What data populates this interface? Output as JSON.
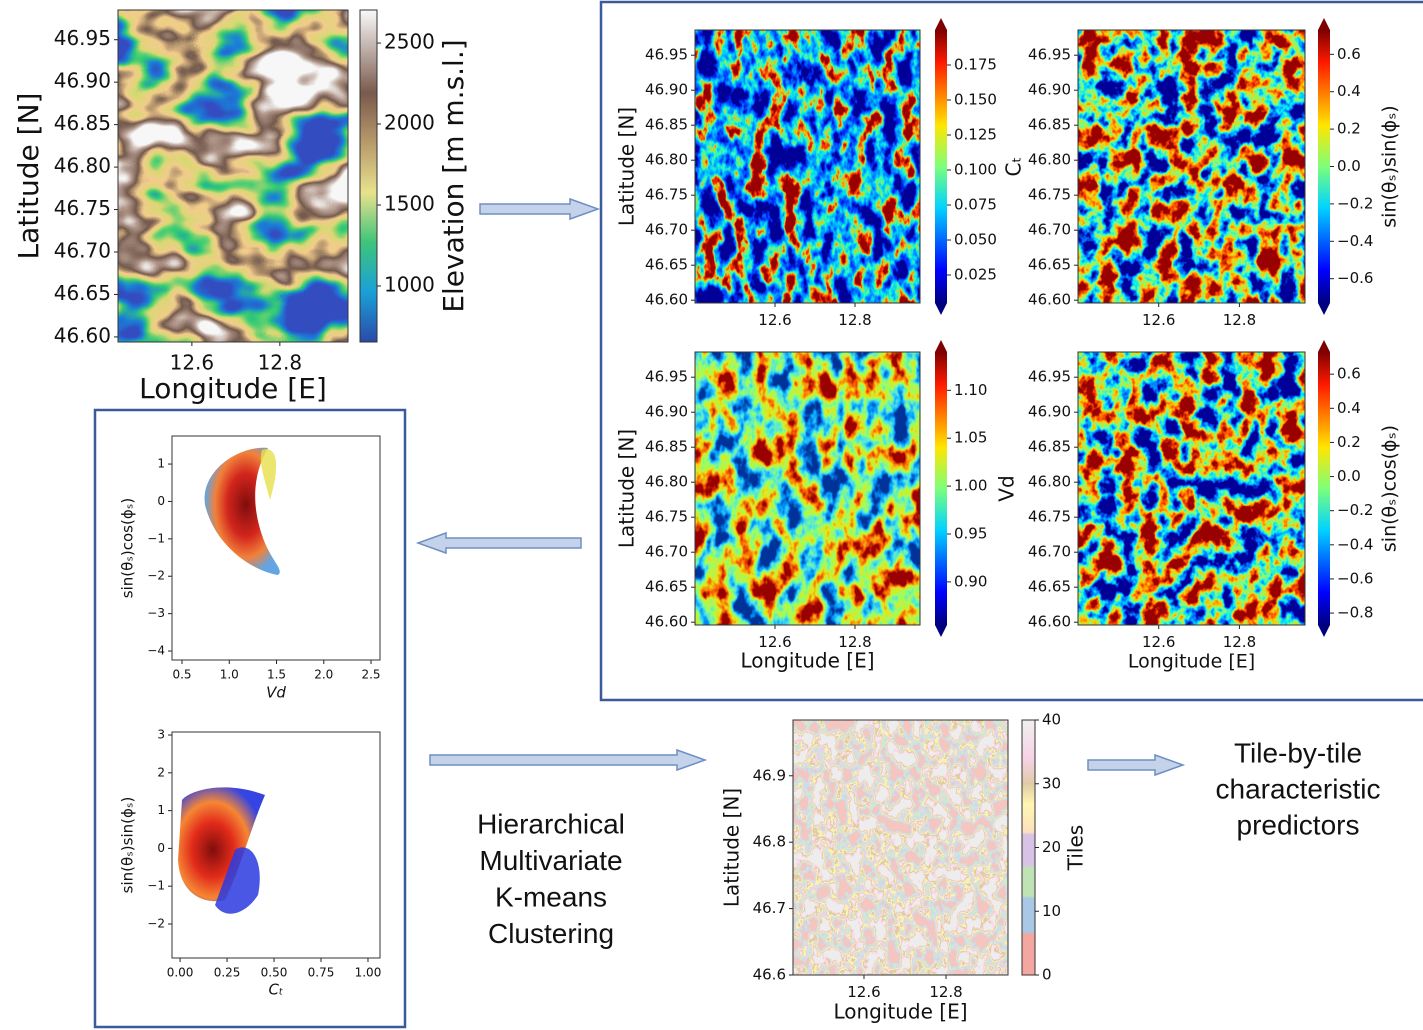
{
  "panels": [
    {
      "xlabel": "Longitude [E]",
      "ylabel": "Latitude [N]",
      "xlim": [
        12.432,
        12.955
      ],
      "ylim": [
        46.594,
        46.985
      ],
      "xticks": [
        12.6,
        12.8
      ],
      "yticks": [
        46.95,
        {
          "value": 46.9,
          "label": "46.90"
        },
        46.85,
        {
          "value": 46.8,
          "label": "46.80"
        },
        46.75,
        {
          "value": 46.7,
          "label": "46.70"
        },
        46.65,
        {
          "value": 46.6,
          "label": "46.60"
        }
      ],
      "colorbar": {
        "label": "Elevation [m m.s.l.]",
        "lim": [
          654,
          2704
        ],
        "ticks": [
          1000,
          1500,
          2000,
          2500
        ]
      }
    },
    {
      "ylabel": "Latitude [N]",
      "xlim": [
        12.4,
        12.9625
      ],
      "ylim": [
        46.596,
        46.986
      ],
      "xticks": [
        12.6,
        12.8
      ],
      "yticks": [
        46.95,
        {
          "value": 46.9,
          "label": "46.90"
        },
        46.85,
        {
          "value": 46.8,
          "label": "46.80"
        },
        46.75,
        {
          "value": 46.7,
          "label": "46.70"
        },
        46.65,
        {
          "value": 46.6,
          "label": "46.60"
        }
      ],
      "colorbar": {
        "label": "Cₜ",
        "lim": [
          0.005,
          0.2
        ],
        "ticks": [
          0.025,
          {
            "value": 0.05,
            "label": "0.050"
          },
          0.075,
          {
            "value": 0.1,
            "label": "0.100"
          },
          0.125,
          {
            "value": 0.15,
            "label": "0.150"
          },
          0.175
        ]
      }
    },
    {
      "xlim": [
        12.4,
        12.9625
      ],
      "ylim": [
        46.596,
        46.986
      ],
      "xticks": [
        12.6,
        12.8
      ],
      "yticks": [
        46.95,
        {
          "value": 46.9,
          "label": "46.90"
        },
        46.85,
        {
          "value": 46.8,
          "label": "46.80"
        },
        46.75,
        {
          "value": 46.7,
          "label": "46.70"
        },
        46.65,
        {
          "value": 46.6,
          "label": "46.60"
        }
      ],
      "colorbar": {
        "label": "sin(θₛ)sin(ϕₛ)",
        "lim": [
          -0.73,
          0.73
        ],
        "ticks": [
          {
            "value": -0.6,
            "label": "−0.6"
          },
          {
            "value": -0.4,
            "label": "−0.4"
          },
          {
            "value": -0.2,
            "label": "−0.2"
          },
          {
            "value": 0,
            "label": "0.0"
          },
          0.2,
          0.4,
          0.6
        ]
      }
    },
    {
      "xlabel": "Longitude [E]",
      "ylabel": "Latitude [N]",
      "xlim": [
        12.4,
        12.9625
      ],
      "ylim": [
        46.596,
        46.986
      ],
      "xticks": [
        12.6,
        12.8
      ],
      "yticks": [
        46.95,
        {
          "value": 46.9,
          "label": "46.90"
        },
        46.85,
        {
          "value": 46.8,
          "label": "46.80"
        },
        46.75,
        {
          "value": 46.7,
          "label": "46.70"
        },
        46.65,
        {
          "value": 46.6,
          "label": "46.60"
        }
      ],
      "colorbar": {
        "label": "Vd",
        "lim": [
          0.855,
          1.14
        ],
        "ticks": [
          {
            "value": 0.9,
            "label": "0.90"
          },
          0.95,
          {
            "value": 1,
            "label": "1.00"
          },
          1.05,
          {
            "value": 1.1,
            "label": "1.10"
          }
        ]
      }
    },
    {
      "xlabel": "Longitude [E]",
      "xlim": [
        12.4,
        12.9625
      ],
      "ylim": [
        46.596,
        46.986
      ],
      "xticks": [
        12.6,
        12.8
      ],
      "yticks": [
        46.95,
        {
          "value": 46.9,
          "label": "46.90"
        },
        46.85,
        {
          "value": 46.8,
          "label": "46.80"
        },
        46.75,
        {
          "value": 46.7,
          "label": "46.70"
        },
        46.65,
        {
          "value": 46.6,
          "label": "46.60"
        }
      ],
      "colorbar": {
        "label": "sin(θₛ)cos(ϕₛ)",
        "lim": [
          -0.87,
          0.73
        ],
        "ticks": [
          {
            "value": -0.8,
            "label": "−0.8"
          },
          {
            "value": -0.6,
            "label": "−0.6"
          },
          {
            "value": -0.4,
            "label": "−0.4"
          },
          {
            "value": -0.2,
            "label": "−0.2"
          },
          {
            "value": 0,
            "label": "0.0"
          },
          0.2,
          0.4,
          0.6
        ]
      }
    },
    {
      "xlabel": "Vd",
      "ylabel": "sin(θₛ)cos(ϕₛ)",
      "xlim": [
        0.394,
        2.595
      ],
      "ylim": [
        -4.24,
        1.75
      ],
      "xticks": [
        0.5,
        {
          "value": 1,
          "label": "1.0"
        },
        1.5,
        {
          "value": 2,
          "label": "2.0"
        },
        2.5
      ],
      "yticks": [
        1,
        0,
        {
          "value": -1,
          "label": "−1"
        },
        {
          "value": -2,
          "label": "−2"
        },
        {
          "value": -3,
          "label": "−3"
        },
        {
          "value": -4,
          "label": "−4"
        }
      ]
    },
    {
      "xlabel": "Cₜ",
      "ylabel": "sin(θₛ)sin(ϕₛ)",
      "xlim": [
        -0.043,
        1.064
      ],
      "ylim": [
        -2.9,
        3.08
      ],
      "xticks": [
        {
          "value": 0,
          "label": "0.00"
        },
        0.25,
        {
          "value": 0.5,
          "label": "0.50"
        },
        0.75,
        {
          "value": 1,
          "label": "1.00"
        }
      ],
      "yticks": [
        3,
        2,
        1,
        0,
        {
          "value": -1,
          "label": "−1"
        },
        {
          "value": -2,
          "label": "−2"
        }
      ]
    },
    {
      "xlabel": "Longitude [E]",
      "ylabel": "Latitude [N]",
      "xlim": [
        12.427,
        12.951
      ],
      "ylim": [
        46.6,
        46.984
      ],
      "xticks": [
        12.6,
        12.8
      ],
      "yticks": [
        46.6,
        46.7,
        46.8,
        46.9
      ],
      "colorbar": {
        "label": "Tiles",
        "lim": [
          0,
          40
        ],
        "ticks": [
          0,
          10,
          20,
          30,
          40
        ]
      }
    }
  ],
  "method": {
    "lines": [
      "Hierarchical",
      "Multivariate",
      "K-means",
      "Clustering"
    ]
  },
  "output": {
    "lines": [
      "Tile-by-tile",
      "characteristic",
      "predictors"
    ]
  }
}
